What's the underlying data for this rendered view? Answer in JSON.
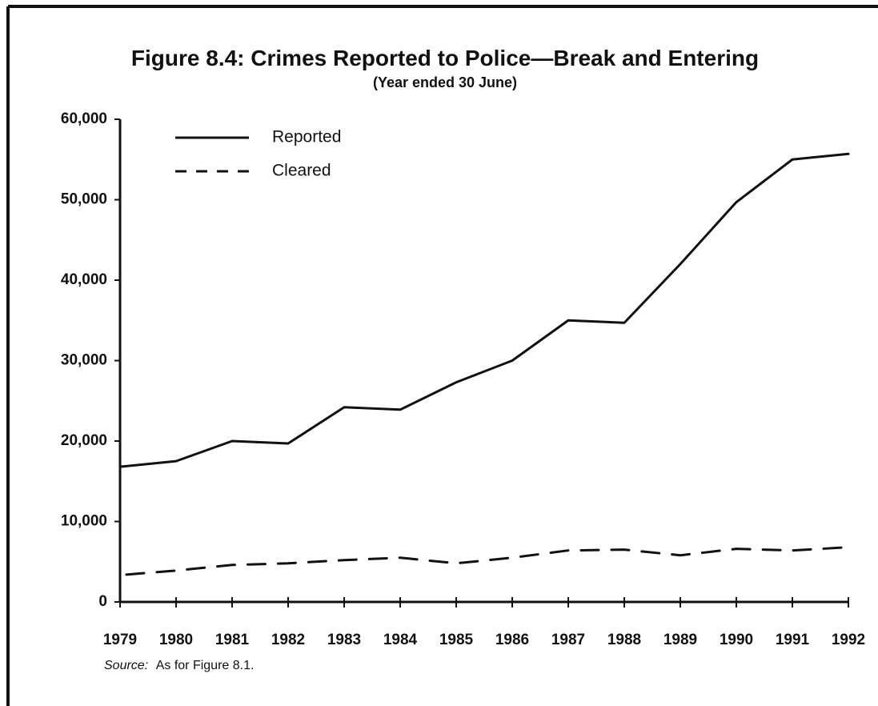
{
  "chart_data": {
    "type": "line",
    "title": "Figure 8.4: Crimes Reported to Police—Break and Entering",
    "subtitle": "(Year ended 30 June)",
    "xlabel": "",
    "ylabel": "",
    "x": [
      1979,
      1980,
      1981,
      1982,
      1983,
      1984,
      1985,
      1986,
      1987,
      1988,
      1989,
      1990,
      1991,
      1992
    ],
    "x_tick_labels": [
      "1979",
      "1980",
      "1981",
      "1982",
      "1983",
      "1984",
      "1985",
      "1986",
      "1987",
      "1988",
      "1989",
      "1990",
      "1991",
      "1992"
    ],
    "ylim": [
      0,
      60000
    ],
    "y_ticks": [
      0,
      10000,
      20000,
      30000,
      40000,
      50000,
      60000
    ],
    "y_tick_labels": [
      "0",
      "10,000",
      "20,000",
      "30,000",
      "40,000",
      "50,000",
      "60,000"
    ],
    "series": [
      {
        "name": "Reported",
        "style": "solid",
        "values": [
          16800,
          17500,
          20000,
          19700,
          24200,
          23900,
          27300,
          30000,
          35000,
          34700,
          42000,
          49700,
          55000,
          55700
        ]
      },
      {
        "name": "Cleared",
        "style": "dashed",
        "values": [
          3400,
          3900,
          4600,
          4800,
          5200,
          5500,
          4800,
          5500,
          6400,
          6500,
          5800,
          6600,
          6400,
          6800
        ]
      }
    ],
    "grid": false,
    "legend_position": "top-left",
    "source_label": "Source:",
    "source_text": "As for Figure 8.1."
  }
}
